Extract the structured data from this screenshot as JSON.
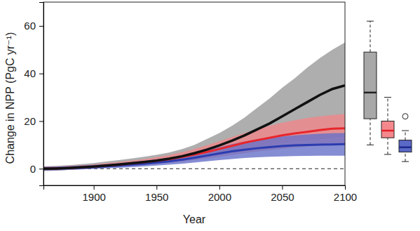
{
  "chart_data": {
    "type": "line",
    "x_label": "Year",
    "y_label": "Change in NPP (PgC yr⁻¹)",
    "xlim": [
      1860,
      2100
    ],
    "ylim": [
      -7,
      70
    ],
    "xticks": [
      1900,
      1950,
      2000,
      2050,
      2100
    ],
    "yticks": [
      0,
      20,
      40,
      60
    ],
    "hline": 0,
    "x": [
      1860,
      1870,
      1880,
      1890,
      1900,
      1910,
      1920,
      1930,
      1940,
      1950,
      1960,
      1970,
      1980,
      1990,
      2000,
      2010,
      2020,
      2030,
      2040,
      2050,
      2060,
      2070,
      2080,
      2090,
      2100
    ],
    "series": [
      {
        "color": "#111111",
        "band_color": "#9a9a9a",
        "values": [
          0,
          0.1,
          0.3,
          0.6,
          0.9,
          1.3,
          1.8,
          2.3,
          2.8,
          3.4,
          4.2,
          5.2,
          6.5,
          8,
          9.8,
          11.8,
          14,
          16.5,
          19,
          22,
          25,
          28,
          31,
          33.5,
          35
        ],
        "lower": [
          -1,
          -0.8,
          -0.5,
          -0.2,
          0.2,
          0.6,
          1,
          1.4,
          1.8,
          2.2,
          2.8,
          3.5,
          4.3,
          5.2,
          6.3,
          7.3,
          8.3,
          9.2,
          10,
          10.8,
          11.5,
          12,
          12.5,
          13,
          13.5
        ],
        "upper": [
          1,
          1.2,
          1.5,
          1.9,
          2.4,
          3,
          3.6,
          4.3,
          5,
          5.8,
          6.8,
          8.2,
          10,
          12.5,
          15,
          18,
          21.5,
          25.5,
          29.5,
          34,
          38,
          42.5,
          46.5,
          50,
          53
        ]
      },
      {
        "color": "#e8262c",
        "band_color": "#f0878b",
        "values": [
          0,
          0.1,
          0.3,
          0.6,
          0.9,
          1.3,
          1.7,
          2.2,
          2.7,
          3.3,
          4,
          4.9,
          5.9,
          7,
          8.3,
          9.6,
          10.9,
          12,
          13,
          14,
          14.8,
          15.5,
          16.2,
          16.8,
          17
        ],
        "lower": [
          -0.8,
          -0.6,
          -0.4,
          -0.1,
          0.2,
          0.5,
          0.8,
          1.2,
          1.6,
          2,
          2.5,
          3,
          3.6,
          4.3,
          5,
          5.8,
          6.5,
          7.2,
          7.8,
          8.4,
          8.9,
          9.4,
          9.8,
          10.1,
          10.5
        ],
        "upper": [
          0.8,
          1,
          1.2,
          1.5,
          1.8,
          2.3,
          2.8,
          3.4,
          4,
          4.8,
          5.7,
          6.9,
          8.3,
          9.8,
          11.5,
          13.3,
          15,
          16.6,
          18,
          19.3,
          20.4,
          21.3,
          22,
          22.6,
          23
        ]
      },
      {
        "color": "#2b3caf",
        "band_color": "#6670c8",
        "values": [
          0,
          0.1,
          0.2,
          0.4,
          0.7,
          1,
          1.3,
          1.7,
          2.1,
          2.6,
          3.1,
          3.8,
          4.6,
          5.5,
          6.4,
          7.3,
          8,
          8.6,
          9.1,
          9.5,
          9.8,
          10,
          10.1,
          10.2,
          10.3
        ],
        "lower": [
          -0.8,
          -0.7,
          -0.5,
          -0.3,
          -0.1,
          0.2,
          0.4,
          0.7,
          1,
          1.3,
          1.7,
          2.1,
          2.6,
          3.1,
          3.6,
          4.1,
          4.5,
          4.8,
          5,
          5.2,
          5.3,
          5.4,
          5.5,
          5.5,
          5.5
        ],
        "upper": [
          0.8,
          0.9,
          1.1,
          1.3,
          1.6,
          1.9,
          2.3,
          2.8,
          3.3,
          3.9,
          4.6,
          5.5,
          6.6,
          7.8,
          9,
          10.3,
          11.4,
          12.3,
          13,
          13.6,
          14,
          14.4,
          14.7,
          14.9,
          15
        ]
      }
    ],
    "boxes": [
      {
        "color": "#a8a8a8",
        "median_color": "#222222",
        "min": 10,
        "q1": 21,
        "median": 32,
        "q3": 49,
        "max": 62,
        "outliers": []
      },
      {
        "color": "#f4888c",
        "median_color": "#e02028",
        "min": 6,
        "q1": 13,
        "median": 16,
        "q3": 20,
        "max": 30,
        "outliers": []
      },
      {
        "color": "#5a68c6",
        "median_color": "#1d2a8c",
        "min": 3,
        "q1": 7,
        "median": 9,
        "q3": 12,
        "max": 16,
        "outliers": [
          22
        ]
      }
    ]
  }
}
